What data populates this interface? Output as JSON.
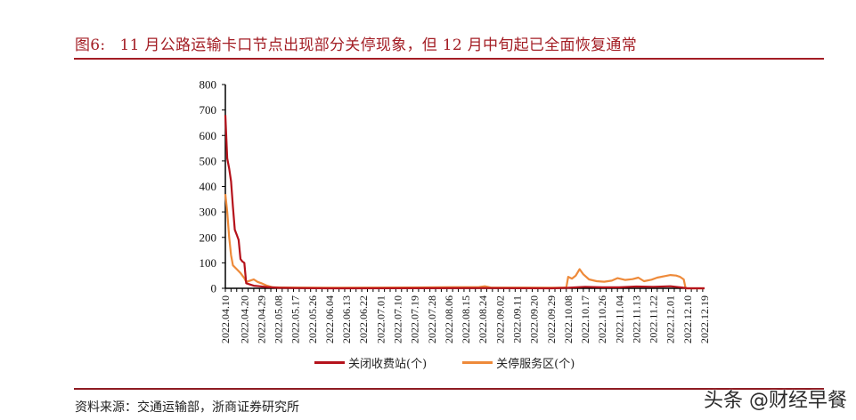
{
  "header": {
    "figure_number": "图6:",
    "title": "11 月公路运输卡口节点出现部分关停现象，但 12 月中旬起已全面恢复通常"
  },
  "footer": {
    "source": "资料来源：交通运输部，浙商证券研究所",
    "watermark": "头条 @财经早餐"
  },
  "legend": {
    "series1_label": "关闭收费站(个)",
    "series2_label": "关停服务区(个)"
  },
  "colors": {
    "accent": "#a31d24",
    "series1": "#b5121b",
    "series2": "#ee8a3a"
  },
  "chart_data": {
    "type": "line",
    "title": "11 月公路运输卡口节点出现部分关停现象，但 12 月中旬起已全面恢复通常",
    "xlabel": "",
    "ylabel": "",
    "ylim": [
      0,
      800
    ],
    "yticks": [
      0,
      100,
      200,
      300,
      400,
      500,
      600,
      700,
      800
    ],
    "xticks": [
      "2022.04.10",
      "2022.04.20",
      "2022.04.29",
      "2022.05.08",
      "2022.05.17",
      "2022.05.26",
      "2022.06.04",
      "2022.06.13",
      "2022.06.22",
      "2022.07.01",
      "2022.07.10",
      "2022.07.19",
      "2022.07.28",
      "2022.08.06",
      "2022.08.15",
      "2022.08.24",
      "2022.09.02",
      "2022.09.11",
      "2022.09.20",
      "2022.09.29",
      "2022.10.08",
      "2022.10.17",
      "2022.10.26",
      "2022.11.04",
      "2022.11.13",
      "2022.11.22",
      "2022.12.01",
      "2022.12.10",
      "2022.12.19"
    ],
    "grid": false,
    "legend_position": "bottom",
    "x_start": "2022.04.10",
    "x_end": "2022.12.19",
    "series": [
      {
        "name": "关闭收费站(个)",
        "points": [
          [
            "2022.04.10",
            680
          ],
          [
            "2022.04.11",
            510
          ],
          [
            "2022.04.12",
            470
          ],
          [
            "2022.04.13",
            420
          ],
          [
            "2022.04.14",
            320
          ],
          [
            "2022.04.15",
            230
          ],
          [
            "2022.04.16",
            210
          ],
          [
            "2022.04.17",
            190
          ],
          [
            "2022.04.18",
            115
          ],
          [
            "2022.04.19",
            105
          ],
          [
            "2022.04.20",
            100
          ],
          [
            "2022.04.21",
            20
          ],
          [
            "2022.04.23",
            15
          ],
          [
            "2022.04.25",
            10
          ],
          [
            "2022.04.28",
            8
          ],
          [
            "2022.05.02",
            5
          ],
          [
            "2022.05.08",
            2
          ],
          [
            "2022.05.17",
            1
          ],
          [
            "2022.06.04",
            0
          ],
          [
            "2022.08.24",
            1
          ],
          [
            "2022.09.29",
            0
          ],
          [
            "2022.10.08",
            2
          ],
          [
            "2022.10.17",
            6
          ],
          [
            "2022.10.26",
            4
          ],
          [
            "2022.11.04",
            4
          ],
          [
            "2022.11.13",
            7
          ],
          [
            "2022.11.22",
            6
          ],
          [
            "2022.12.01",
            8
          ],
          [
            "2022.12.07",
            3
          ],
          [
            "2022.12.10",
            0
          ],
          [
            "2022.12.19",
            0
          ]
        ]
      },
      {
        "name": "关停服务区(个)",
        "points": [
          [
            "2022.04.10",
            370
          ],
          [
            "2022.04.11",
            300
          ],
          [
            "2022.04.12",
            200
          ],
          [
            "2022.04.13",
            130
          ],
          [
            "2022.04.14",
            90
          ],
          [
            "2022.04.16",
            75
          ],
          [
            "2022.04.18",
            60
          ],
          [
            "2022.04.20",
            40
          ],
          [
            "2022.04.21",
            25
          ],
          [
            "2022.04.23",
            30
          ],
          [
            "2022.04.25",
            35
          ],
          [
            "2022.04.27",
            25
          ],
          [
            "2022.04.29",
            20
          ],
          [
            "2022.05.02",
            10
          ],
          [
            "2022.05.05",
            4
          ],
          [
            "2022.05.10",
            3
          ],
          [
            "2022.06.01",
            2
          ],
          [
            "2022.07.15",
            3
          ],
          [
            "2022.08.22",
            5
          ],
          [
            "2022.08.25",
            8
          ],
          [
            "2022.08.28",
            3
          ],
          [
            "2022.10.01",
            2
          ],
          [
            "2022.10.07",
            3
          ],
          [
            "2022.10.08",
            45
          ],
          [
            "2022.10.10",
            38
          ],
          [
            "2022.10.12",
            50
          ],
          [
            "2022.10.14",
            75
          ],
          [
            "2022.10.16",
            55
          ],
          [
            "2022.10.19",
            35
          ],
          [
            "2022.10.23",
            28
          ],
          [
            "2022.10.27",
            26
          ],
          [
            "2022.10.31",
            30
          ],
          [
            "2022.11.03",
            40
          ],
          [
            "2022.11.07",
            33
          ],
          [
            "2022.11.11",
            36
          ],
          [
            "2022.11.14",
            42
          ],
          [
            "2022.11.17",
            28
          ],
          [
            "2022.11.21",
            34
          ],
          [
            "2022.11.24",
            42
          ],
          [
            "2022.11.28",
            48
          ],
          [
            "2022.12.01",
            52
          ],
          [
            "2022.12.04",
            50
          ],
          [
            "2022.12.06",
            45
          ],
          [
            "2022.12.08",
            35
          ],
          [
            "2022.12.09",
            0
          ],
          [
            "2022.12.19",
            0
          ]
        ]
      }
    ]
  }
}
